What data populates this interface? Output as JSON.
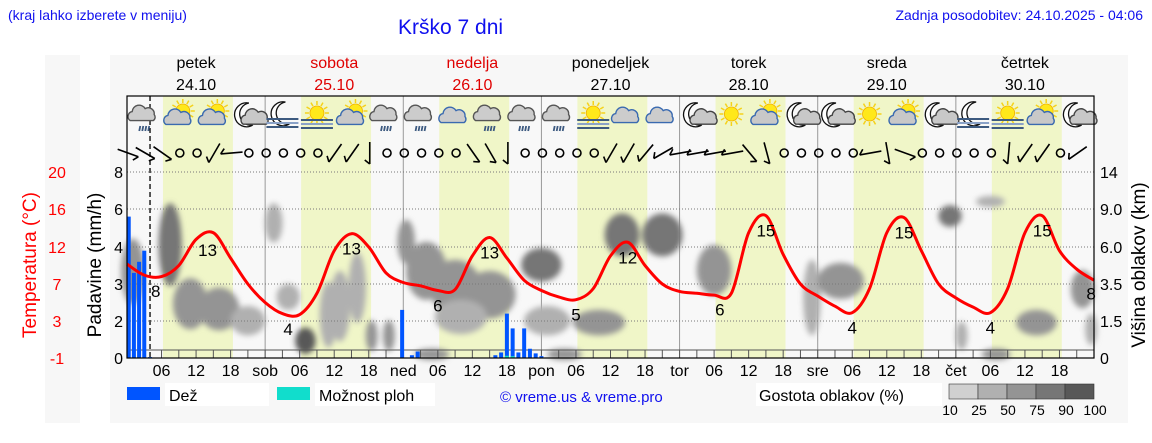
{
  "header": {
    "hint": "(kraj lahko izberete v meniju)",
    "title": "Krško 7 dni",
    "updated": "Zadnja posodobitev: 24.10.2025 - 04:06"
  },
  "days": [
    {
      "name": "petek",
      "date": "24.10",
      "weekend": false
    },
    {
      "name": "sobota",
      "date": "25.10",
      "weekend": true
    },
    {
      "name": "nedelja",
      "date": "26.10",
      "weekend": true
    },
    {
      "name": "ponedeljek",
      "date": "27.10",
      "weekend": false
    },
    {
      "name": "torek",
      "date": "28.10",
      "weekend": false
    },
    {
      "name": "sreda",
      "date": "29.10",
      "weekend": false
    },
    {
      "name": "četrtek",
      "date": "30.10",
      "weekend": false
    }
  ],
  "legend": {
    "rain": "Dež",
    "showers": "Možnost ploh",
    "copyright": "© vreme.us & vreme.pro",
    "cloud_density": "Gostota oblakov (%)",
    "density_steps": [
      "10",
      "25",
      "50",
      "75",
      "90",
      "100"
    ]
  },
  "colors": {
    "rain": "#0055ff",
    "showers": "#11ddcc",
    "temperature": "#ff0000",
    "daylight": "#f0f6c8",
    "text_blue": "#1010ee",
    "density": [
      "#d0d0d0",
      "#b0b0b0",
      "#949494",
      "#767676",
      "#585858"
    ]
  },
  "chart_data": {
    "type": "meteogram",
    "title": "Krško 7 dni",
    "x_unit": "hours from Fri 24.10 00:00",
    "x_range": [
      0,
      168
    ],
    "now_hour": 4,
    "daylight_hours": [
      6.25,
      18.4
    ],
    "x_tick_labels": [
      "06",
      "12",
      "18",
      "sob",
      "06",
      "12",
      "18",
      "ned",
      "06",
      "12",
      "18",
      "pon",
      "06",
      "12",
      "18",
      "tor",
      "06",
      "12",
      "18",
      "sre",
      "06",
      "12",
      "18",
      "čet",
      "06",
      "12",
      "18"
    ],
    "left_axis_temperature": {
      "label": "Temperatura (°C)",
      "ticks": [
        "20",
        "16",
        "12",
        "7",
        "3",
        "-1"
      ]
    },
    "left_axis_precip": {
      "label": "Padavine (mm/h)",
      "ticks": [
        "8",
        "6",
        "4",
        "3",
        "2",
        "0"
      ]
    },
    "right_axis_cloud": {
      "label": "Višina oblakov (km)",
      "ticks": [
        "14",
        "9.0",
        "6.0",
        "3.5",
        "1.5",
        "0"
      ]
    },
    "temperature": {
      "step_hours": 3,
      "values": [
        9.7,
        8.2,
        8.0,
        9.5,
        12.8,
        13.5,
        10.5,
        7.0,
        5.0,
        3.8,
        3.7,
        6.0,
        11.5,
        13.4,
        12.0,
        8.5,
        7.2,
        6.8,
        6.3,
        6.4,
        10.8,
        13.0,
        10.5,
        7.5,
        6.3,
        5.6,
        5.3,
        6.5,
        10.8,
        12.5,
        9.5,
        7.0,
        6.2,
        6.0,
        5.8,
        6.0,
        13.5,
        15.3,
        11.0,
        7.0,
        5.7,
        4.6,
        3.9,
        6.5,
        13.5,
        15.1,
        11.5,
        7.0,
        5.5,
        4.5,
        3.9,
        6.5,
        13.5,
        15.3,
        11.5,
        9.0,
        7.5
      ]
    },
    "temperature_labels": [
      {
        "t": 5,
        "v": "8"
      },
      {
        "t": 14,
        "v": "13"
      },
      {
        "t": 28,
        "v": "4"
      },
      {
        "t": 39,
        "v": "13"
      },
      {
        "t": 54,
        "v": "6"
      },
      {
        "t": 63,
        "v": "13"
      },
      {
        "t": 78,
        "v": "5"
      },
      {
        "t": 87,
        "v": "12"
      },
      {
        "t": 103,
        "v": "6"
      },
      {
        "t": 111,
        "v": "15"
      },
      {
        "t": 126,
        "v": "4"
      },
      {
        "t": 135,
        "v": "15"
      },
      {
        "t": 150,
        "v": "4"
      },
      {
        "t": 159,
        "v": "15"
      },
      {
        "t": 167.5,
        "v": "8"
      }
    ],
    "rain": [
      {
        "t": 0.3,
        "mm": 5.6
      },
      {
        "t": 1.2,
        "mm": 3.3
      },
      {
        "t": 2.1,
        "mm": 3.6
      },
      {
        "t": 3.0,
        "mm": 3.9
      },
      {
        "t": 4.0,
        "mm": 0.05
      },
      {
        "t": 47.8,
        "mm": 2.3
      },
      {
        "t": 49.5,
        "mm": 0.15
      },
      {
        "t": 50.5,
        "mm": 0.35
      },
      {
        "t": 64.0,
        "mm": 0.15
      },
      {
        "t": 65.0,
        "mm": 0.3
      },
      {
        "t": 66.0,
        "mm": 2.2
      },
      {
        "t": 67.0,
        "mm": 1.6
      },
      {
        "t": 68.0,
        "mm": 0.3
      },
      {
        "t": 69.0,
        "mm": 1.6
      },
      {
        "t": 70.0,
        "mm": 0.5
      },
      {
        "t": 71.0,
        "mm": 0.25
      },
      {
        "t": 72.0,
        "mm": 0.1
      }
    ],
    "showers": [
      {
        "t": 66.0,
        "mm": 0.12
      },
      {
        "t": 67.0,
        "mm": 0.1
      }
    ],
    "clouds": [
      {
        "t": 1,
        "km": 4.5,
        "dt": 3,
        "dkm": 4,
        "d": 60
      },
      {
        "t": 7.5,
        "km": 6.5,
        "dt": 3,
        "dkm": 6,
        "d": 80
      },
      {
        "t": 11,
        "km": 2.5,
        "dt": 5,
        "dkm": 2.5,
        "d": 55
      },
      {
        "t": 16,
        "km": 2.2,
        "dt": 6,
        "dkm": 2,
        "d": 60
      },
      {
        "t": 21,
        "km": 1.6,
        "dt": 5,
        "dkm": 1.2,
        "d": 35
      },
      {
        "t": 25.5,
        "km": 8,
        "dt": 2,
        "dkm": 3,
        "d": 40
      },
      {
        "t": 28,
        "km": 2.8,
        "dt": 3,
        "dkm": 1.2,
        "d": 30
      },
      {
        "t": 31,
        "km": 0.7,
        "dt": 2.5,
        "dkm": 0.9,
        "d": 90
      },
      {
        "t": 35,
        "km": 2,
        "dt": 2,
        "dkm": 3,
        "d": 35
      },
      {
        "t": 37,
        "km": 2.5,
        "dt": 2.5,
        "dkm": 3.5,
        "d": 35
      },
      {
        "t": 40,
        "km": 3.5,
        "dt": 2,
        "dkm": 4,
        "d": 30
      },
      {
        "t": 42.5,
        "km": 0.9,
        "dt": 1,
        "dkm": 1.1,
        "d": 70
      },
      {
        "t": 45.5,
        "km": 0.9,
        "dt": 1,
        "dkm": 1.1,
        "d": 70
      },
      {
        "t": 48.5,
        "km": 6.5,
        "dt": 2,
        "dkm": 3,
        "d": 60
      },
      {
        "t": 52,
        "km": 4.5,
        "dt": 6,
        "dkm": 3.5,
        "d": 60
      },
      {
        "t": 57,
        "km": 3.5,
        "dt": 8,
        "dkm": 3,
        "d": 55
      },
      {
        "t": 63,
        "km": 3,
        "dt": 8,
        "dkm": 2.5,
        "d": 60
      },
      {
        "t": 58,
        "km": 1.8,
        "dt": 8,
        "dkm": 1.5,
        "d": 40
      },
      {
        "t": 72,
        "km": 4.8,
        "dt": 6,
        "dkm": 2,
        "d": 80
      },
      {
        "t": 73,
        "km": 1.6,
        "dt": 7,
        "dkm": 1.2,
        "d": 45
      },
      {
        "t": 82,
        "km": 1.5,
        "dt": 8,
        "dkm": 1,
        "d": 50
      },
      {
        "t": 86,
        "km": 7,
        "dt": 5,
        "dkm": 3,
        "d": 80
      },
      {
        "t": 93,
        "km": 7,
        "dt": 6,
        "dkm": 3,
        "d": 80
      },
      {
        "t": 102,
        "km": 4.5,
        "dt": 5,
        "dkm": 3,
        "d": 70
      },
      {
        "t": 119,
        "km": 3,
        "dt": 2,
        "dkm": 4,
        "d": 40
      },
      {
        "t": 124,
        "km": 3.8,
        "dt": 7,
        "dkm": 2,
        "d": 70
      },
      {
        "t": 143,
        "km": 8.5,
        "dt": 3,
        "dkm": 1.5,
        "d": 85
      },
      {
        "t": 150,
        "km": 10,
        "dt": 4,
        "dkm": 1,
        "d": 35
      },
      {
        "t": 145,
        "km": 0.9,
        "dt": 1,
        "dkm": 1,
        "d": 30
      },
      {
        "t": 158,
        "km": 1.5,
        "dt": 6,
        "dkm": 1,
        "d": 55
      },
      {
        "t": 166,
        "km": 3.3,
        "dt": 3,
        "dkm": 2,
        "d": 50
      },
      {
        "t": 167.5,
        "km": 1.2,
        "dt": 1,
        "dkm": 1.2,
        "d": 40
      },
      {
        "t": 53,
        "km": 0.15,
        "dt": 5,
        "dkm": 0.3,
        "d": 50
      },
      {
        "t": 76,
        "km": 0.15,
        "dt": 5,
        "dkm": 0.3,
        "d": 60
      },
      {
        "t": 151,
        "km": 0.15,
        "dt": 4,
        "dkm": 0.3,
        "d": 50
      }
    ],
    "weather_icons": {
      "first_hour": 3,
      "step_hours": 6,
      "items": [
        "rain-cloud",
        "sun-cloud",
        "sun-cloud",
        "moon-cloud",
        "fog-moon",
        "fog-sun",
        "sun-cloud",
        "rain-cloud",
        "rain-cloud",
        "cloud",
        "rain-cloud",
        "rain-cloud",
        "rain-cloud",
        "fog-sun",
        "cloud",
        "cloud",
        "moon-cloud",
        "sun",
        "sun-cloud",
        "moon-cloud",
        "moon-cloud",
        "sun",
        "sun-cloud",
        "moon-cloud",
        "fog-moon",
        "fog-sun",
        "sun-cloud",
        "moon-cloud"
      ]
    },
    "wind": {
      "step_hours": 3,
      "directions": [
        -70,
        -60,
        -55,
        null,
        null,
        30,
        85,
        null,
        null,
        null,
        null,
        null,
        35,
        35,
        0,
        null,
        null,
        null,
        null,
        null,
        -35,
        -30,
        0,
        null,
        null,
        null,
        null,
        null,
        30,
        30,
        40,
        60,
        80,
        80,
        80,
        80,
        -40,
        -15,
        null,
        null,
        null,
        null,
        null,
        80,
        -10,
        -70,
        null,
        null,
        null,
        null,
        null,
        5,
        35,
        35,
        null,
        55
      ]
    }
  }
}
